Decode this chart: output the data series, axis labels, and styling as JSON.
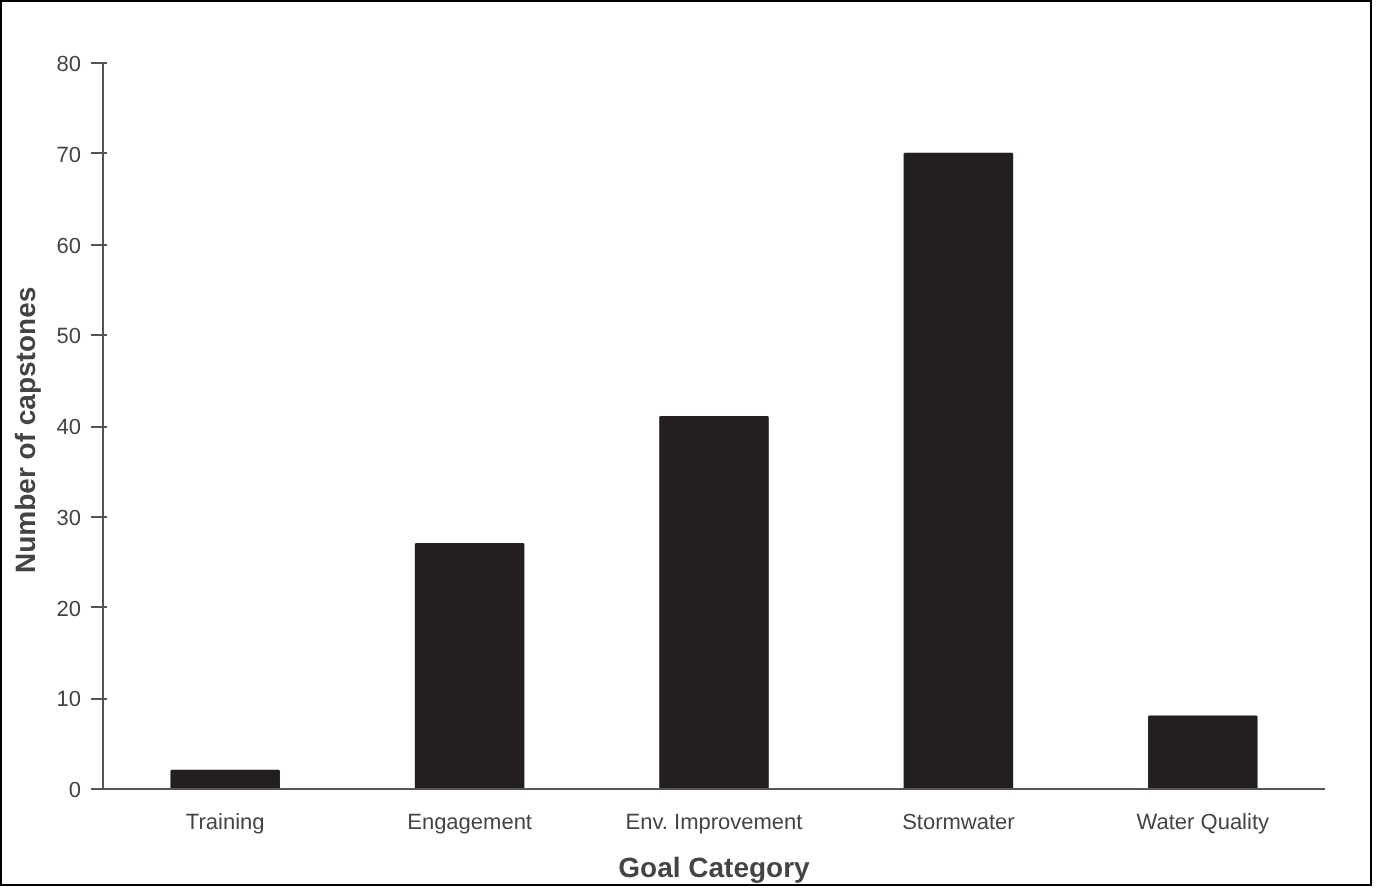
{
  "chart_data": {
    "type": "bar",
    "xlabel": "Goal Category",
    "ylabel": "Number of  capstones",
    "categories": [
      "Training",
      "Engagement",
      "Env. Improvement",
      "Stormwater",
      "Water Quality"
    ],
    "values": [
      2,
      27,
      41,
      70,
      8
    ],
    "color": "#231f20",
    "ylim": [
      0,
      80
    ],
    "yticks": [
      0,
      10,
      20,
      30,
      40,
      50,
      60,
      70,
      80
    ],
    "grid": false
  }
}
